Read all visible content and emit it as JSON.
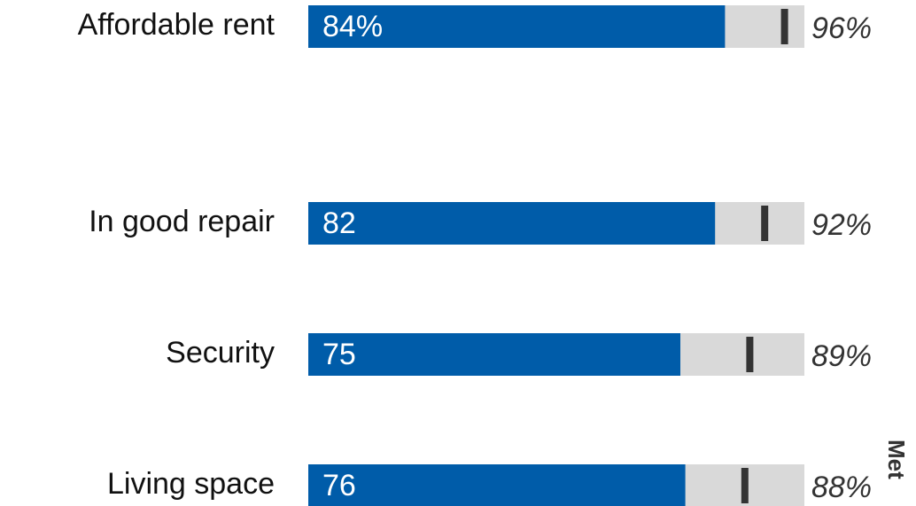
{
  "chart_data": {
    "type": "bullet",
    "categories": [
      "Affordable rent",
      "In good repair",
      "Security",
      "Living space"
    ],
    "values": [
      84,
      82,
      75,
      76
    ],
    "value_labels": [
      "84%",
      "82",
      "75",
      "76"
    ],
    "targets": [
      96,
      92,
      89,
      88
    ],
    "target_labels": [
      "96%",
      "92%",
      "89%",
      "88%"
    ],
    "color": "#005ca9",
    "track_color": "#d9d9d9",
    "target_color": "#333333",
    "xlim": [
      0,
      100
    ],
    "annotation": "Met"
  }
}
